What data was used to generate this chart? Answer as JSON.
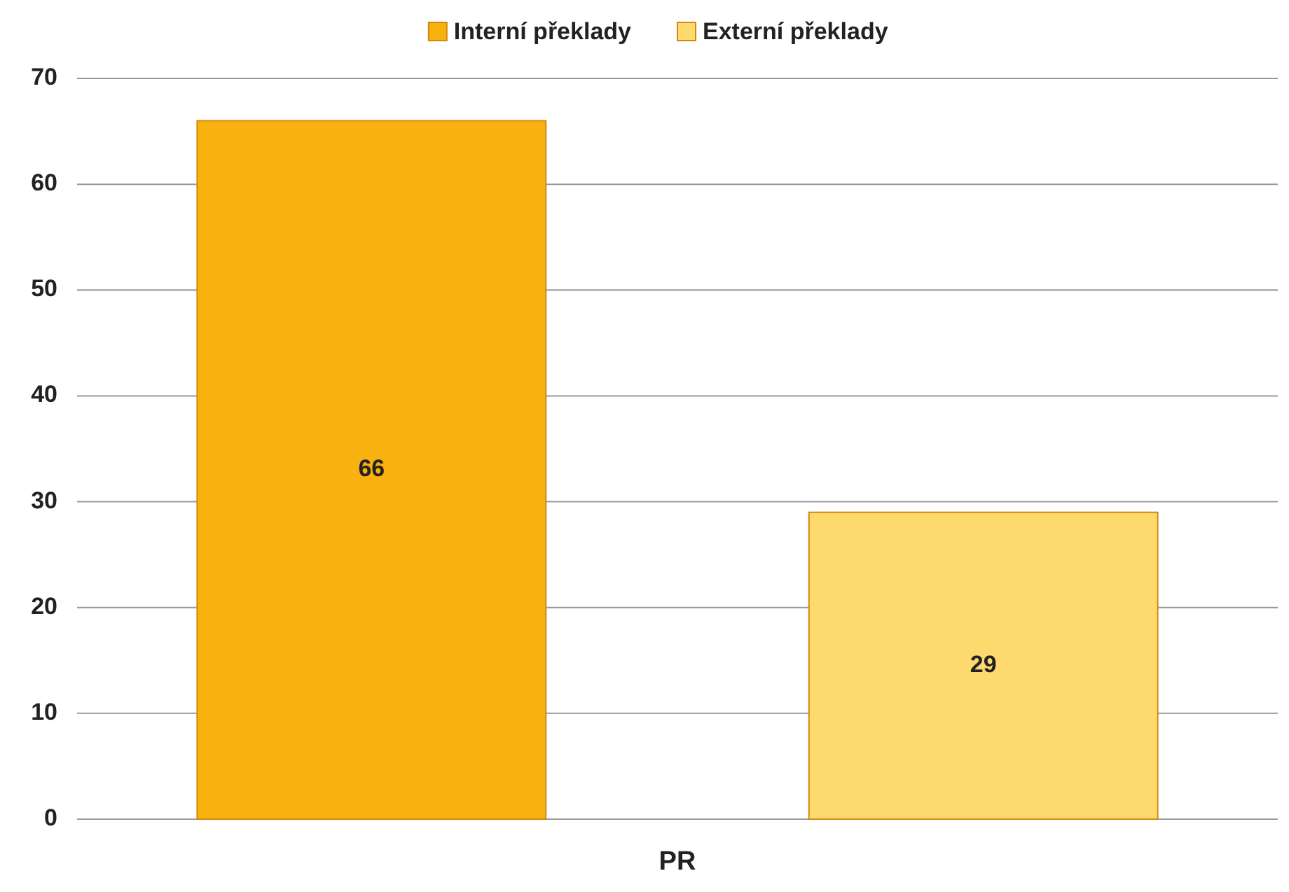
{
  "chart_data": {
    "type": "bar",
    "categories": [
      "PR"
    ],
    "series": [
      {
        "name": "Interní překlady",
        "color": "#f9b10f",
        "values": [
          66
        ]
      },
      {
        "name": "Externí překlady",
        "color": "#fdd96e",
        "values": [
          29
        ]
      }
    ],
    "ylim": [
      0,
      70
    ],
    "yticks": [
      0,
      10,
      20,
      30,
      40,
      50,
      60,
      70
    ],
    "grid": "y",
    "legend": "top",
    "data_labels": true
  }
}
